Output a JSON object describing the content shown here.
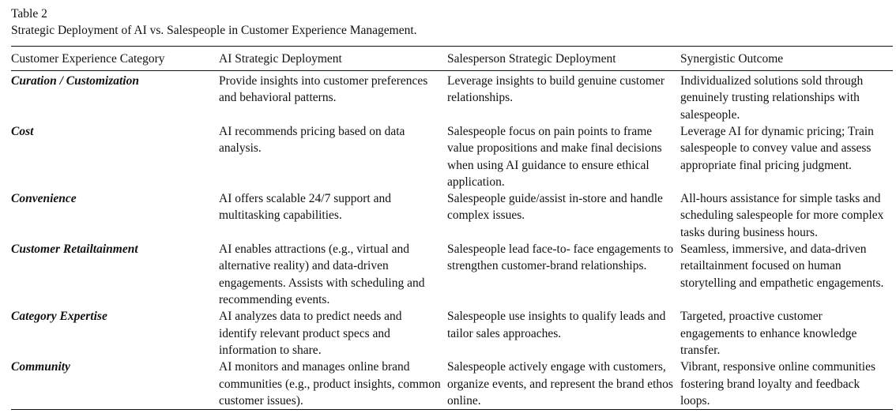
{
  "caption": {
    "label": "Table 2",
    "title": "Strategic Deployment of AI vs. Salespeople in Customer Experience Management."
  },
  "table": {
    "headers": [
      "Customer Experience Category",
      "AI Strategic Deployment",
      "Salesperson Strategic Deployment",
      "Synergistic Outcome"
    ],
    "rows": [
      {
        "category": "Curation / Customization",
        "ai": "Provide insights into customer preferences and behavioral patterns.",
        "salesperson": "Leverage insights to build genuine customer relationships.",
        "outcome": "Individualized solutions sold through genuinely trusting relationships with salespeople."
      },
      {
        "category": "Cost",
        "ai": "AI recommends pricing based on data analysis.",
        "salesperson": "Salespeople focus on pain points to frame value propositions and make final decisions when using AI guidance to ensure ethical application.",
        "outcome": "Leverage AI for dynamic pricing; Train salespeople to convey value and assess appropriate final pricing judgment."
      },
      {
        "category": "Convenience",
        "ai": "AI offers scalable 24/7 support and multitasking capabilities.",
        "salesperson": "Salespeople guide/assist in-store and handle complex issues.",
        "outcome": "All-hours assistance for simple tasks and scheduling salespeople for more complex tasks during business hours."
      },
      {
        "category": "Customer Retailtainment",
        "ai": "AI enables attractions (e.g., virtual and alternative reality) and data-driven engagements. Assists with scheduling and recommending events.",
        "salesperson": "Salespeople lead face-to- face engagements to strengthen customer-brand relationships.",
        "outcome": "Seamless, immersive, and data-driven retailtainment focused on human storytelling and empathetic engagements."
      },
      {
        "category": "Category Expertise",
        "ai": "AI analyzes data to predict needs and identify relevant product specs and information to share.",
        "salesperson": "Salespeople use insights to qualify leads and tailor sales approaches.",
        "outcome": "Targeted, proactive customer engagements to enhance knowledge transfer."
      },
      {
        "category": "Community",
        "ai": "AI monitors and manages online brand communities (e.g., product insights, common customer issues).",
        "salesperson": "Salespeople actively engage with customers, organize events, and represent the brand ethos online.",
        "outcome": "Vibrant, responsive online communities fostering brand loyalty and feedback loops."
      }
    ]
  }
}
